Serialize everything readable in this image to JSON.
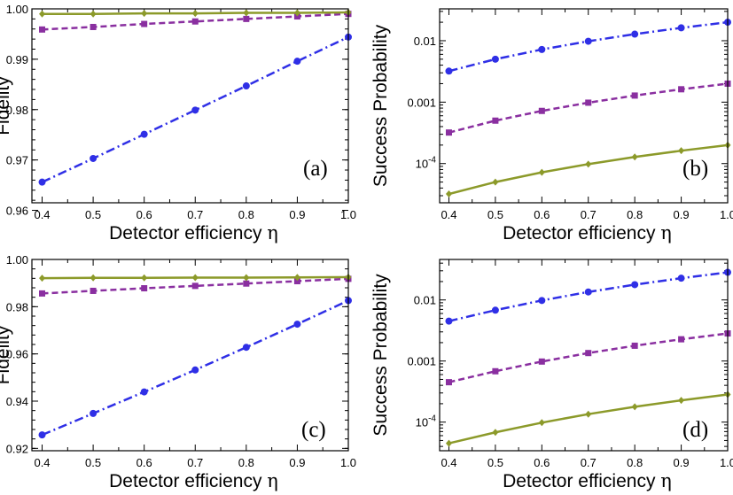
{
  "figure": {
    "colors": {
      "blue": "#2f2fe6",
      "purple": "#8a2fa0",
      "olive": "#8c9a2a"
    },
    "eta_symbol": "η"
  },
  "chart_data": [
    {
      "type": "line",
      "panel_label": "(a)",
      "xlabel": "Detector efficiency",
      "ylabel": "Fidelity",
      "xlim": [
        0.38,
        1.0
      ],
      "ylim": [
        0.9615,
        1.0
      ],
      "yscale": "linear",
      "xticks": [
        0.4,
        0.5,
        0.6,
        0.7,
        0.8,
        0.9,
        1.0
      ],
      "xtick_labels": [
        "0.4",
        "0.5",
        "0.6",
        "0.7",
        "0.8",
        "0.9",
        "1.0"
      ],
      "yticks": [
        0.96,
        0.97,
        0.98,
        0.99,
        1.0
      ],
      "ytick_labels": [
        "0.96",
        "0.97",
        "0.98",
        "0.99",
        "1.00"
      ],
      "x": [
        0.4,
        0.5,
        0.6,
        0.7,
        0.8,
        0.9,
        1.0
      ],
      "series": [
        {
          "name": "blue-circles",
          "color": "#2f2fe6",
          "marker": "circle",
          "dash": "dashdot",
          "values": [
            0.9656,
            0.9703,
            0.9751,
            0.9799,
            0.9847,
            0.9896,
            0.9944
          ]
        },
        {
          "name": "purple-squares",
          "color": "#8a2fa0",
          "marker": "square",
          "dash": "dashed",
          "values": [
            0.9959,
            0.9964,
            0.997,
            0.9975,
            0.998,
            0.9985,
            0.999
          ]
        },
        {
          "name": "olive-diamonds",
          "color": "#8c9a2a",
          "marker": "diamond",
          "dash": "solid",
          "values": [
            0.999,
            0.999,
            0.9991,
            0.9991,
            0.9992,
            0.9992,
            0.9993
          ]
        }
      ]
    },
    {
      "type": "line",
      "panel_label": "(b)",
      "xlabel": "Detector efficiency",
      "ylabel": "Success Probability",
      "xlim": [
        0.38,
        1.0
      ],
      "ylim": [
        2.3e-05,
        0.033
      ],
      "yscale": "log",
      "xticks": [
        0.4,
        0.5,
        0.6,
        0.7,
        0.8,
        0.9,
        1.0
      ],
      "xtick_labels": [
        "0.4",
        "0.5",
        "0.6",
        "0.7",
        "0.8",
        "0.9",
        "1.0"
      ],
      "yticks": [
        0.0001,
        0.001,
        0.01
      ],
      "ytick_labels": [
        "10-4",
        "0.001",
        "0.01"
      ],
      "x": [
        0.4,
        0.5,
        0.6,
        0.7,
        0.8,
        0.9,
        1.0
      ],
      "series": [
        {
          "name": "blue-circles",
          "color": "#2f2fe6",
          "marker": "circle",
          "dash": "dashdot",
          "values": [
            0.0032,
            0.005,
            0.0072,
            0.0098,
            0.0128,
            0.0162,
            0.02
          ]
        },
        {
          "name": "purple-squares",
          "color": "#8a2fa0",
          "marker": "square",
          "dash": "dashed",
          "values": [
            0.00032,
            0.0005,
            0.00072,
            0.00098,
            0.00128,
            0.00162,
            0.002
          ]
        },
        {
          "name": "olive-diamonds",
          "color": "#8c9a2a",
          "marker": "diamond",
          "dash": "solid",
          "values": [
            3.2e-05,
            5e-05,
            7.2e-05,
            9.8e-05,
            0.000128,
            0.000162,
            0.0002
          ]
        }
      ]
    },
    {
      "type": "line",
      "panel_label": "(c)",
      "xlabel": "Detector efficiency",
      "ylabel": "Fidelity",
      "xlim": [
        0.38,
        1.0
      ],
      "ylim": [
        0.919,
        1.0
      ],
      "yscale": "linear",
      "xticks": [
        0.4,
        0.5,
        0.6,
        0.7,
        0.8,
        0.9,
        1.0
      ],
      "xtick_labels": [
        "0.4",
        "0.5",
        "0.6",
        "0.7",
        "0.8",
        "0.9",
        "1.0"
      ],
      "yticks": [
        0.92,
        0.94,
        0.96,
        0.98,
        1.0
      ],
      "ytick_labels": [
        "0.92",
        "0.94",
        "0.96",
        "0.98",
        "1.00"
      ],
      "x": [
        0.4,
        0.5,
        0.6,
        0.7,
        0.8,
        0.9,
        1.0
      ],
      "series": [
        {
          "name": "blue-circles",
          "color": "#2f2fe6",
          "marker": "circle",
          "dash": "dashdot",
          "values": [
            0.9257,
            0.9348,
            0.9439,
            0.9532,
            0.9628,
            0.9726,
            0.9826
          ]
        },
        {
          "name": "purple-squares",
          "color": "#8a2fa0",
          "marker": "square",
          "dash": "dashed",
          "values": [
            0.9856,
            0.9867,
            0.9878,
            0.9888,
            0.9898,
            0.9908,
            0.9918
          ]
        },
        {
          "name": "olive-diamonds",
          "color": "#8c9a2a",
          "marker": "diamond",
          "dash": "solid",
          "values": [
            0.9921,
            0.9922,
            0.9922,
            0.9923,
            0.9923,
            0.9924,
            0.9925
          ]
        }
      ]
    },
    {
      "type": "line",
      "panel_label": "(d)",
      "xlabel": "Detector efficiency",
      "ylabel": "Success Probability",
      "xlim": [
        0.38,
        1.0
      ],
      "ylim": [
        3.4e-05,
        0.046
      ],
      "yscale": "log",
      "xticks": [
        0.4,
        0.5,
        0.6,
        0.7,
        0.8,
        0.9,
        1.0
      ],
      "xtick_labels": [
        "0.4",
        "0.5",
        "0.6",
        "0.7",
        "0.8",
        "0.9",
        "1.0"
      ],
      "yticks": [
        0.0001,
        0.001,
        0.01
      ],
      "ytick_labels": [
        "10-4",
        "0.001",
        "0.01"
      ],
      "x": [
        0.4,
        0.5,
        0.6,
        0.7,
        0.8,
        0.9,
        1.0
      ],
      "series": [
        {
          "name": "blue-circles",
          "color": "#2f2fe6",
          "marker": "circle",
          "dash": "dashdot",
          "values": [
            0.0045,
            0.0068,
            0.0098,
            0.0135,
            0.0178,
            0.0227,
            0.0283
          ]
        },
        {
          "name": "purple-squares",
          "color": "#8a2fa0",
          "marker": "square",
          "dash": "dashed",
          "values": [
            0.00045,
            0.00068,
            0.00098,
            0.00135,
            0.00178,
            0.00227,
            0.00283
          ]
        },
        {
          "name": "olive-diamonds",
          "color": "#8c9a2a",
          "marker": "diamond",
          "dash": "solid",
          "values": [
            4.5e-05,
            6.8e-05,
            9.8e-05,
            0.000135,
            0.000178,
            0.000227,
            0.000283
          ]
        }
      ]
    }
  ]
}
